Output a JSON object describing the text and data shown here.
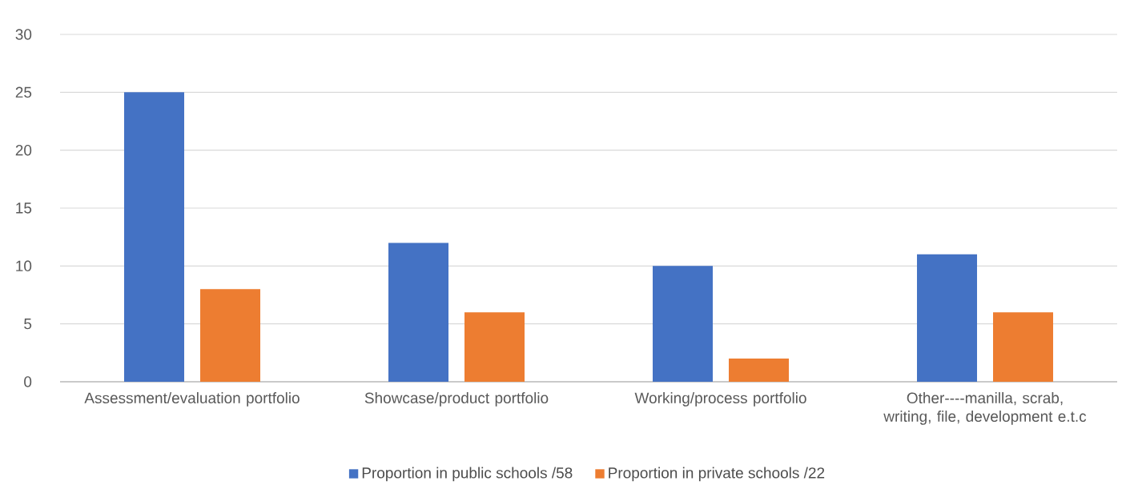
{
  "chart_data": {
    "type": "bar",
    "categories": [
      "Assessment/evaluation portfolio",
      "Showcase/product portfolio",
      "Working/process portfolio",
      "Other----manilla, scrab, writing, file, development e.t.c"
    ],
    "series": [
      {
        "name": "Proportion in public schools /58",
        "color": "#4472c4",
        "values": [
          25,
          12,
          10,
          11
        ]
      },
      {
        "name": "Proportion in private schools /22",
        "color": "#ed7d31",
        "values": [
          8,
          6,
          2,
          6
        ]
      }
    ],
    "ylim": [
      0,
      30
    ],
    "yticks": [
      0,
      5,
      10,
      15,
      20,
      25,
      30
    ],
    "grid": "y",
    "legend": "bottom"
  }
}
